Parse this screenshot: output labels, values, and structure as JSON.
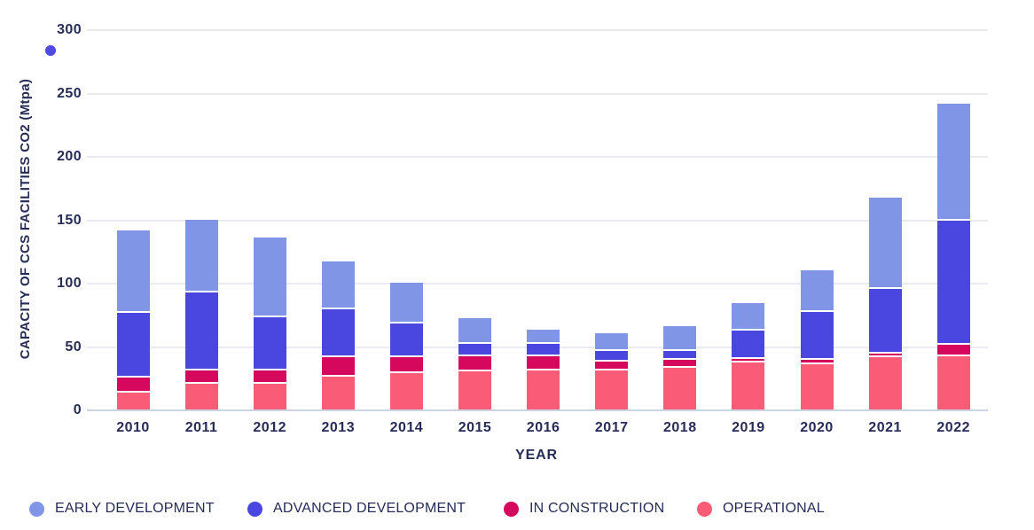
{
  "colors": {
    "text": "#262c55",
    "gridline": "#e9eaef",
    "axis_baseline": "#c9d5e1",
    "stray_dot": "#4f4be2",
    "early_development": "#8195e7",
    "advanced_development": "#4a47e0",
    "in_construction": "#d6085e",
    "operational": "#fa5c77"
  },
  "decorations": {
    "stray_dot_icon": "circle"
  },
  "chart_data": {
    "type": "bar",
    "stacked": true,
    "title": "",
    "xlabel": "YEAR",
    "ylabel": "CAPACITY OF CCS FACILITIES CO2 (Mtpa)",
    "ylim": [
      0,
      300
    ],
    "yticks": [
      0,
      50,
      100,
      150,
      200,
      250,
      300
    ],
    "grid": true,
    "legend_position": "bottom",
    "categories": [
      "2010",
      "2011",
      "2012",
      "2013",
      "2014",
      "2015",
      "2016",
      "2017",
      "2018",
      "2019",
      "2020",
      "2021",
      "2022"
    ],
    "series": [
      {
        "name": "EARLY DEVELOPMENT",
        "color": "#8195e7",
        "values": [
          65,
          58,
          63,
          38,
          32,
          20,
          11,
          14,
          20,
          22,
          33,
          72,
          92
        ]
      },
      {
        "name": "ADVANCED DEVELOPMENT",
        "color": "#4a47e0",
        "values": [
          51,
          61,
          42,
          38,
          27,
          10,
          10,
          8,
          7,
          22,
          38,
          51,
          98
        ]
      },
      {
        "name": "IN CONSTRUCTION",
        "color": "#d6085e",
        "values": [
          12,
          11,
          11,
          15,
          12,
          12,
          11,
          7,
          6,
          3,
          3,
          3,
          9
        ]
      },
      {
        "name": "OPERATIONAL",
        "color": "#fa5c77",
        "values": [
          13,
          20,
          20,
          26,
          29,
          30,
          31,
          31,
          33,
          37,
          36,
          41,
          42
        ]
      }
    ],
    "totals": [
      141,
      150,
      136,
      117,
      100,
      72,
      63,
      60,
      66,
      84,
      110,
      167,
      241
    ]
  }
}
